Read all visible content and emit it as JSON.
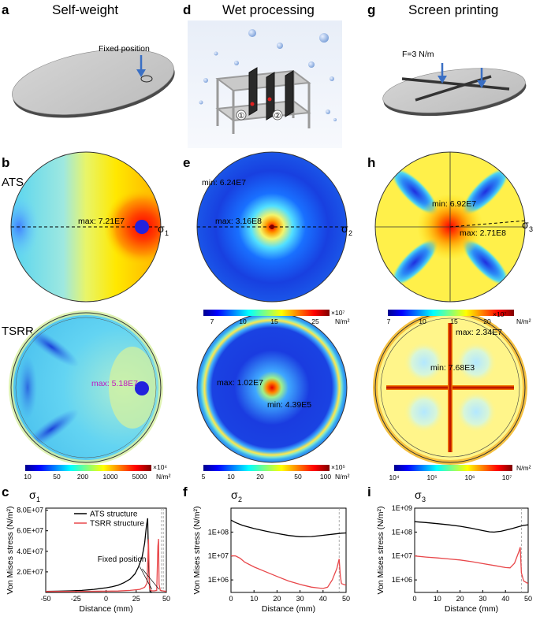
{
  "columns": [
    {
      "letter": "a",
      "title": "Self-weight"
    },
    {
      "letter": "d",
      "title": "Wet processing"
    },
    {
      "letter": "g",
      "title": "Screen printing"
    }
  ],
  "row_letters": {
    "b": "b",
    "e": "e",
    "h": "h",
    "c": "c",
    "f": "f",
    "i": "i"
  },
  "row_labels": {
    "ats": "ATS",
    "tsrr": "TSRR"
  },
  "top": {
    "fixed_position": "Fixed position",
    "force": "F=3 N/m",
    "slot_1": "①",
    "slot_2": "②"
  },
  "maps": {
    "b_ats": {
      "max": "max: 7.21E7",
      "sigma": "σ",
      "sub": "1"
    },
    "b_tsrr": {
      "max": "max: 5.18E7"
    },
    "e_ats": {
      "min": "min: 6.24E7",
      "max": "max: 3.16E8",
      "sigma": "σ",
      "sub": "2"
    },
    "e_tsrr": {
      "max": "max: 1.02E7",
      "min": "min: 4.39E5"
    },
    "h_ats": {
      "min": "min: 6.92E7",
      "max": "max: 2.71E8",
      "sigma": "σ",
      "sub": "3"
    },
    "h_tsrr": {
      "max": "max: 2.34E7",
      "min": "min: 7.68E3"
    }
  },
  "colorbars": {
    "b": {
      "ticks": [
        "10",
        "50",
        "200",
        "1000",
        "5000"
      ],
      "exp": "×10⁴",
      "unit": "N/m²"
    },
    "e_ats": {
      "ticks": [
        "7",
        "10",
        "15",
        "25"
      ],
      "exp": "×10⁷",
      "unit": "N/m²"
    },
    "e_tsrr": {
      "ticks": [
        "5",
        "10",
        "20",
        "50",
        "100"
      ],
      "exp": "×10⁵",
      "unit": "N/m²"
    },
    "h_ats": {
      "ticks": [
        "7",
        "10",
        "15",
        "20"
      ],
      "exp": "×10⁷",
      "unit": "N/m²"
    },
    "h_tsrr": {
      "ticks": [
        "10⁴",
        "10⁵",
        "10⁶",
        "10⁷"
      ],
      "unit": "N/m²"
    }
  },
  "colors": {
    "ats": "#000000",
    "tsrr": "#e8474a",
    "marker_blue": "#2222dd",
    "arrow_blue": "#3a6fc4"
  },
  "chart_data": [
    {
      "type": "line",
      "panel": "c",
      "title": "σ1",
      "xlabel": "Distance (mm)",
      "ylabel": "Von Mises stress (N/m²)",
      "xlim": [
        -50,
        50
      ],
      "ylim": [
        0,
        82000000.0
      ],
      "yscale": "linear",
      "xticks": [
        "-50",
        "-25",
        "0",
        "25",
        "50"
      ],
      "yticks": [
        "2.0E+07",
        "4.0E+07",
        "6.0E+07",
        "8.0E+07"
      ],
      "annotation": "Fixed  position",
      "legend": [
        "ATS structure",
        "TSRR structure"
      ],
      "series": [
        {
          "name": "ATS structure",
          "x": [
            -50,
            -40,
            -30,
            -20,
            -10,
            0,
            5,
            10,
            15,
            20,
            24,
            27,
            30,
            32,
            33.5,
            34.5,
            35.5,
            36.5,
            38
          ],
          "y": [
            1000000.0,
            1200000.0,
            1500000.0,
            2000000.0,
            3000000.0,
            4500000.0,
            5500000.0,
            7000000.0,
            9500000.0,
            13000000.0,
            18000000.0,
            25000000.0,
            35000000.0,
            48000000.0,
            65000000.0,
            72100000.0,
            20000000.0,
            1000000.0,
            0
          ]
        },
        {
          "name": "TSRR structure",
          "x": [
            -50,
            -40,
            -20,
            0,
            10,
            20,
            28,
            32,
            34,
            35.2,
            36,
            37,
            38,
            40,
            42,
            43,
            43.5,
            44,
            45,
            47,
            50
          ],
          "y": [
            1000000.0,
            1000000.0,
            1100000.0,
            1200000.0,
            1400000.0,
            2000000.0,
            3000000.0,
            5000000.0,
            9000000.0,
            51800000.0,
            4000000.0,
            2000000.0,
            1500000.0,
            1500000.0,
            2000000.0,
            45000000.0,
            52000000.0,
            8000000.0,
            2000000.0,
            1500000.0,
            1000000.0
          ]
        }
      ]
    },
    {
      "type": "line",
      "panel": "f",
      "title": "σ2",
      "xlabel": "Distance (mm)",
      "ylabel": "Von Mises stress (N/m²)",
      "xlim": [
        0,
        50
      ],
      "ylim": [
        300000.0,
        1000000000.0
      ],
      "yscale": "log",
      "xticks": [
        "0",
        "10",
        "20",
        "30",
        "40",
        "50"
      ],
      "yticks": [
        "1E+06",
        "1E+07",
        "1E+08"
      ],
      "series": [
        {
          "name": "ATS structure",
          "x": [
            0,
            2,
            5,
            10,
            15,
            20,
            25,
            30,
            35,
            40,
            45,
            48,
            50
          ],
          "y": [
            316000000.0,
            250000000.0,
            190000000.0,
            140000000.0,
            110000000.0,
            88000000.0,
            72000000.0,
            64000000.0,
            65000000.0,
            73000000.0,
            83000000.0,
            90000000.0,
            92000000.0
          ]
        },
        {
          "name": "TSRR structure",
          "x": [
            0,
            2,
            4,
            6,
            10,
            15,
            20,
            25,
            30,
            35,
            38,
            40,
            42,
            44,
            46,
            47,
            47.5,
            48,
            50
          ],
          "y": [
            10200000.0,
            10000000.0,
            8000000.0,
            5500000.0,
            3500000.0,
            2200000.0,
            1400000.0,
            900000.0,
            650000.0,
            500000.0,
            460000.0,
            439000.0,
            500000.0,
            1000000.0,
            3000000.0,
            7500000.0,
            1500000.0,
            700000.0,
            600000.0
          ]
        }
      ]
    },
    {
      "type": "line",
      "panel": "i",
      "title": "σ3",
      "xlabel": "Distance (mm)",
      "ylabel": "Von Mises stress (N/m²)",
      "xlim": [
        0,
        50
      ],
      "ylim": [
        300000.0,
        1000000000.0
      ],
      "yscale": "log",
      "xticks": [
        "0",
        "10",
        "20",
        "30",
        "40",
        "50"
      ],
      "yticks": [
        "1E+06",
        "1E+07",
        "1E+08",
        "1E+09"
      ],
      "series": [
        {
          "name": "ATS structure",
          "x": [
            0,
            5,
            10,
            15,
            20,
            25,
            30,
            33,
            35,
            38,
            40,
            43,
            46,
            48,
            50
          ],
          "y": [
            271000000.0,
            250000000.0,
            225000000.0,
            200000000.0,
            175000000.0,
            145000000.0,
            115000000.0,
            102000000.0,
            100000000.0,
            108000000.0,
            120000000.0,
            140000000.0,
            170000000.0,
            190000000.0,
            200000000.0
          ]
        },
        {
          "name": "TSRR structure",
          "x": [
            0,
            5,
            10,
            15,
            20,
            25,
            30,
            35,
            40,
            42,
            44,
            45,
            46,
            46.5,
            47,
            48,
            50
          ],
          "y": [
            10000000.0,
            9000000.0,
            8300000.0,
            7500000.0,
            6800000.0,
            5800000.0,
            4800000.0,
            4000000.0,
            3300000.0,
            3200000.0,
            5000000.0,
            9000000.0,
            16000000.0,
            23400000.0,
            2000000.0,
            900000.0,
            700000.0
          ]
        }
      ]
    }
  ]
}
